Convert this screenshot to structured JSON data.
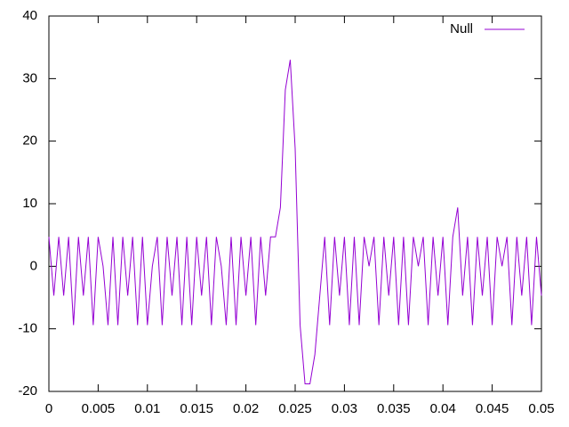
{
  "chart_data": {
    "type": "line",
    "x": [
      0,
      0.0005,
      0.001,
      0.0015,
      0.002,
      0.0025,
      0.003,
      0.0035,
      0.004,
      0.0045,
      0.005,
      0.0055,
      0.006,
      0.0065,
      0.007,
      0.0075,
      0.008,
      0.0085,
      0.009,
      0.0095,
      0.01,
      0.0105,
      0.011,
      0.0115,
      0.012,
      0.0125,
      0.013,
      0.0135,
      0.014,
      0.0145,
      0.015,
      0.0155,
      0.016,
      0.0165,
      0.017,
      0.0175,
      0.018,
      0.0185,
      0.019,
      0.0195,
      0.02,
      0.0205,
      0.021,
      0.0215,
      0.022,
      0.0225,
      0.023,
      0.0235,
      0.024,
      0.0245,
      0.025,
      0.0255,
      0.026,
      0.0265,
      0.027,
      0.0275,
      0.028,
      0.0285,
      0.029,
      0.0295,
      0.03,
      0.0305,
      0.031,
      0.0315,
      0.032,
      0.0325,
      0.033,
      0.0335,
      0.034,
      0.0345,
      0.035,
      0.0355,
      0.036,
      0.0365,
      0.037,
      0.0375,
      0.038,
      0.0385,
      0.039,
      0.0395,
      0.04,
      0.0405,
      0.041,
      0.0415,
      0.042,
      0.0425,
      0.043,
      0.0435,
      0.044,
      0.0445,
      0.045,
      0.0455,
      0.046,
      0.0465,
      0.047,
      0.0475,
      0.048,
      0.0485,
      0.049,
      0.0495,
      0.05
    ],
    "series": [
      {
        "name": "Null",
        "color": "#9400d3",
        "values": [
          4.7,
          -4.7,
          4.7,
          -4.7,
          4.7,
          -9.4,
          4.7,
          -4.7,
          4.7,
          -9.4,
          4.7,
          0,
          -9.4,
          4.7,
          -9.4,
          4.7,
          -4.7,
          4.7,
          -9.4,
          4.7,
          -9.4,
          0,
          4.7,
          -9.4,
          4.7,
          -4.7,
          4.7,
          -9.4,
          4.7,
          -9.4,
          4.7,
          -4.7,
          4.7,
          -9.4,
          4.7,
          0,
          -9.4,
          4.7,
          -9.4,
          4.7,
          -4.7,
          4.7,
          -9.4,
          4.7,
          -4.7,
          4.7,
          4.7,
          9.4,
          28.2,
          33,
          18.8,
          -9.4,
          -18.8,
          -18.8,
          -14.1,
          -4.7,
          4.7,
          -9.4,
          4.7,
          -4.7,
          4.7,
          -9.4,
          4.7,
          -9.4,
          4.7,
          0,
          4.7,
          -9.4,
          4.7,
          -4.7,
          4.7,
          -9.4,
          4.7,
          -9.4,
          4.7,
          0,
          4.7,
          -9.4,
          4.7,
          -4.7,
          4.7,
          -9.4,
          4.7,
          9.4,
          -4.7,
          4.7,
          -9.4,
          4.7,
          -4.7,
          4.7,
          -9.4,
          4.7,
          0,
          4.7,
          -9.4,
          4.7,
          -4.7,
          4.7,
          -9.4,
          4.7,
          -4.7
        ]
      }
    ],
    "xlim": [
      0,
      0.05
    ],
    "xticks": [
      0,
      0.005,
      0.01,
      0.015,
      0.02,
      0.025,
      0.03,
      0.035,
      0.04,
      0.045,
      0.05
    ],
    "ylim": [
      -20,
      40
    ],
    "yticks": [
      -20,
      -10,
      0,
      10,
      20,
      30,
      40
    ],
    "legend": "top-right"
  }
}
